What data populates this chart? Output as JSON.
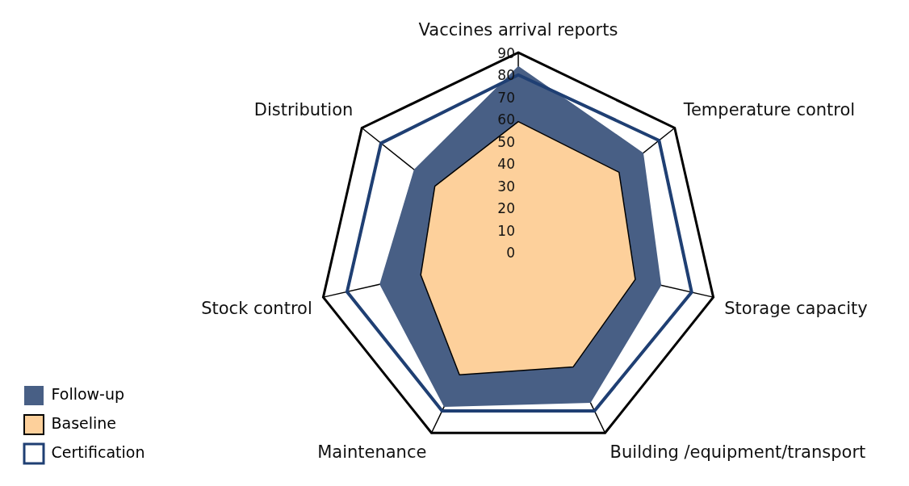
{
  "chart_data": {
    "type": "radar",
    "categories": [
      "Vaccines arrival reports",
      "Temperature control",
      "Storage capacity",
      "Building /equipment/transport",
      "Maintenance",
      "Stock control",
      "Distribution"
    ],
    "series": [
      {
        "name": "Follow-up",
        "color": "#485f85",
        "values": [
          84,
          72,
          66,
          75,
          77,
          64,
          60
        ]
      },
      {
        "name": "Baseline",
        "color": "#fdd09b",
        "values": [
          59,
          58,
          54,
          57,
          61,
          45,
          48
        ]
      },
      {
        "name": "Certification",
        "color": "#1f3f73",
        "values": [
          80,
          81,
          80,
          79,
          79,
          79,
          79
        ]
      }
    ],
    "ylim": [
      0,
      90
    ],
    "yticks": [
      0,
      10,
      20,
      30,
      40,
      50,
      60,
      70,
      80,
      90
    ],
    "grid": true,
    "legend": "bottom left",
    "marker": "none"
  }
}
